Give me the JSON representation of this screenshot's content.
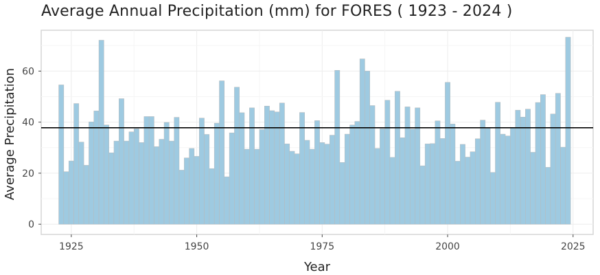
{
  "chart_data": {
    "type": "bar",
    "title": "Average Annual Precipitation (mm) for FORES ( 1923 - 2024 )",
    "xlabel": "Year",
    "ylabel": "Average Precipitation",
    "xlim": [
      1919,
      2029
    ],
    "ylim": [
      -4,
      76
    ],
    "xticks": [
      1925,
      1950,
      1975,
      2000,
      2025
    ],
    "yticks": [
      0,
      20,
      40,
      60
    ],
    "grid": true,
    "legend": "none",
    "bar_color": "#9ecae1",
    "reference_line": {
      "y": 37.8,
      "color": "#000000"
    },
    "x": [
      1923,
      1924,
      1925,
      1926,
      1927,
      1928,
      1929,
      1930,
      1931,
      1932,
      1933,
      1934,
      1935,
      1936,
      1937,
      1938,
      1939,
      1940,
      1941,
      1942,
      1943,
      1944,
      1945,
      1946,
      1947,
      1948,
      1949,
      1950,
      1951,
      1952,
      1953,
      1954,
      1955,
      1956,
      1957,
      1958,
      1959,
      1960,
      1961,
      1962,
      1963,
      1964,
      1965,
      1966,
      1967,
      1968,
      1969,
      1970,
      1971,
      1972,
      1973,
      1974,
      1975,
      1976,
      1977,
      1978,
      1979,
      1980,
      1981,
      1982,
      1983,
      1984,
      1985,
      1986,
      1987,
      1988,
      1989,
      1990,
      1991,
      1992,
      1993,
      1994,
      1995,
      1996,
      1997,
      1998,
      1999,
      2000,
      2001,
      2002,
      2003,
      2004,
      2005,
      2006,
      2007,
      2008,
      2009,
      2010,
      2011,
      2012,
      2013,
      2014,
      2015,
      2016,
      2017,
      2018,
      2019,
      2020,
      2021,
      2022,
      2023,
      2024
    ],
    "values": [
      54.6,
      20.6,
      24.8,
      47.3,
      32.2,
      23.1,
      40.1,
      44.4,
      72.1,
      38.9,
      28.0,
      32.6,
      49.2,
      32.6,
      36.2,
      37.4,
      32.0,
      42.2,
      42.2,
      30.4,
      33.3,
      39.9,
      32.6,
      41.9,
      21.2,
      26.0,
      29.7,
      26.6,
      41.6,
      35.2,
      21.8,
      39.6,
      56.2,
      18.6,
      35.8,
      53.7,
      43.7,
      29.4,
      45.6,
      29.4,
      37.1,
      46.3,
      44.5,
      44.0,
      47.5,
      31.5,
      28.6,
      27.6,
      43.8,
      32.9,
      29.4,
      40.6,
      32.0,
      31.4,
      34.9,
      60.3,
      24.2,
      35.3,
      38.9,
      40.3,
      64.8,
      60.0,
      46.5,
      29.7,
      37.4,
      48.6,
      26.2,
      52.1,
      33.9,
      46.0,
      37.3,
      45.6,
      22.9,
      31.5,
      31.6,
      40.5,
      33.6,
      55.6,
      39.3,
      24.7,
      31.3,
      26.3,
      28.4,
      33.5,
      40.8,
      37.6,
      20.3,
      47.8,
      35.3,
      34.6,
      37.9,
      44.7,
      42.0,
      45.1,
      28.2,
      47.7,
      50.8,
      22.3,
      43.2,
      51.3,
      30.2,
      73.3
    ]
  }
}
